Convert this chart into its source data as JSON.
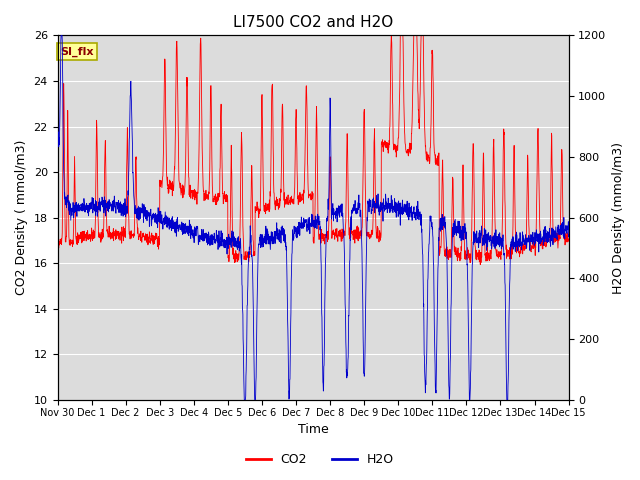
{
  "title": "LI7500 CO2 and H2O",
  "xlabel": "Time",
  "ylabel_left": "CO2 Density ( mmol/m3)",
  "ylabel_right": "H2O Density (mmol/m3)",
  "ylim_left": [
    10,
    26
  ],
  "ylim_right": [
    0,
    1200
  ],
  "yticks_left": [
    10,
    12,
    14,
    16,
    18,
    20,
    22,
    24,
    26
  ],
  "yticks_right": [
    0,
    200,
    400,
    600,
    800,
    1000,
    1200
  ],
  "co2_color": "#FF0000",
  "h2o_color": "#0000CC",
  "bg_color": "#DCDCDC",
  "legend_label_co2": "CO2",
  "legend_label_h2o": "H2O",
  "annotation_text": "SI_flx",
  "annotation_bg": "#FFFF99",
  "annotation_border": "#AAAA00",
  "xtick_labels": [
    "Nov 30",
    "Dec 1",
    "Dec 2",
    "Dec 3",
    "Dec 4",
    "Dec 5",
    "Dec 6",
    "Dec 7",
    "Dec 8",
    "Dec 9",
    "Dec 10",
    "Dec 11",
    "Dec 12",
    "Dec 13",
    "Dec 14",
    "Dec 15"
  ],
  "title_fontsize": 11,
  "axis_label_fontsize": 9,
  "tick_fontsize": 8,
  "legend_fontsize": 9
}
